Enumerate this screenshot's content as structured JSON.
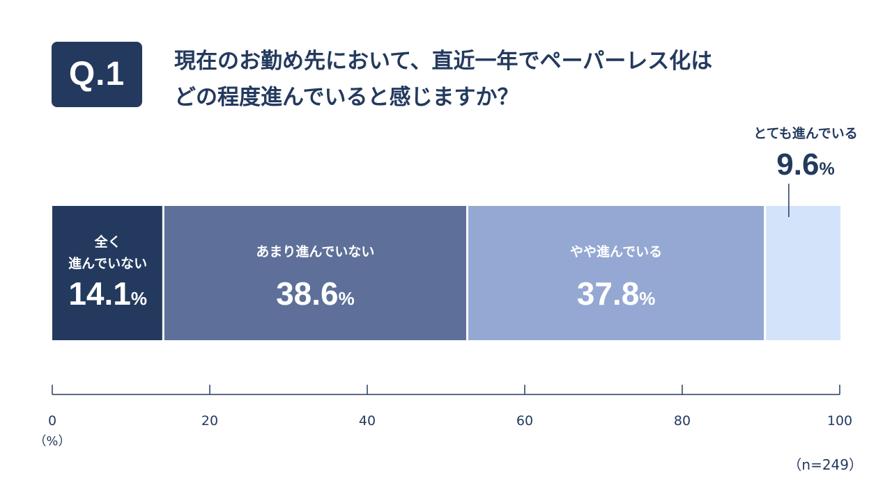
{
  "question": {
    "badge": "Q.1",
    "line1": "現在のお勤め先において、直近一年でペーパーレス化は",
    "line2": "どの程度進んでいると感じますか？"
  },
  "sample_note": "（n=249）",
  "axis_unit_label": "（%）",
  "colors": {
    "navy_text": "#233a5e",
    "axis": "#233a5e"
  },
  "chart_data": {
    "type": "bar",
    "orientation": "horizontal-stacked-100",
    "categories": [
      "全く\n進んでいない",
      "あまり進んでいない",
      "やや進んでいる",
      "とても進んでいる"
    ],
    "series": [
      {
        "name": "全く進んでいない",
        "label_lines": [
          "全く",
          "進んでいない"
        ],
        "value": 14.1,
        "color": "#233a5e",
        "text_color": "#ffffff"
      },
      {
        "name": "あまり進んでいない",
        "label_lines": [
          "あまり進んでいない"
        ],
        "value": 38.6,
        "color": "#5e7099",
        "text_color": "#ffffff"
      },
      {
        "name": "やや進んでいる",
        "label_lines": [
          "やや進んでいる"
        ],
        "value": 37.8,
        "color": "#95a8d3",
        "text_color": "#ffffff"
      },
      {
        "name": "とても進んでいる",
        "label_lines": [
          "とても進んでいる"
        ],
        "value": 9.6,
        "color": "#d3e4fa",
        "text_color": "#233a5e",
        "label_outside": true
      }
    ],
    "value_suffix": "%",
    "xlim": [
      0,
      100
    ],
    "xticks": [
      0,
      20,
      40,
      60,
      80,
      100
    ],
    "grid": false,
    "legend": "none"
  }
}
